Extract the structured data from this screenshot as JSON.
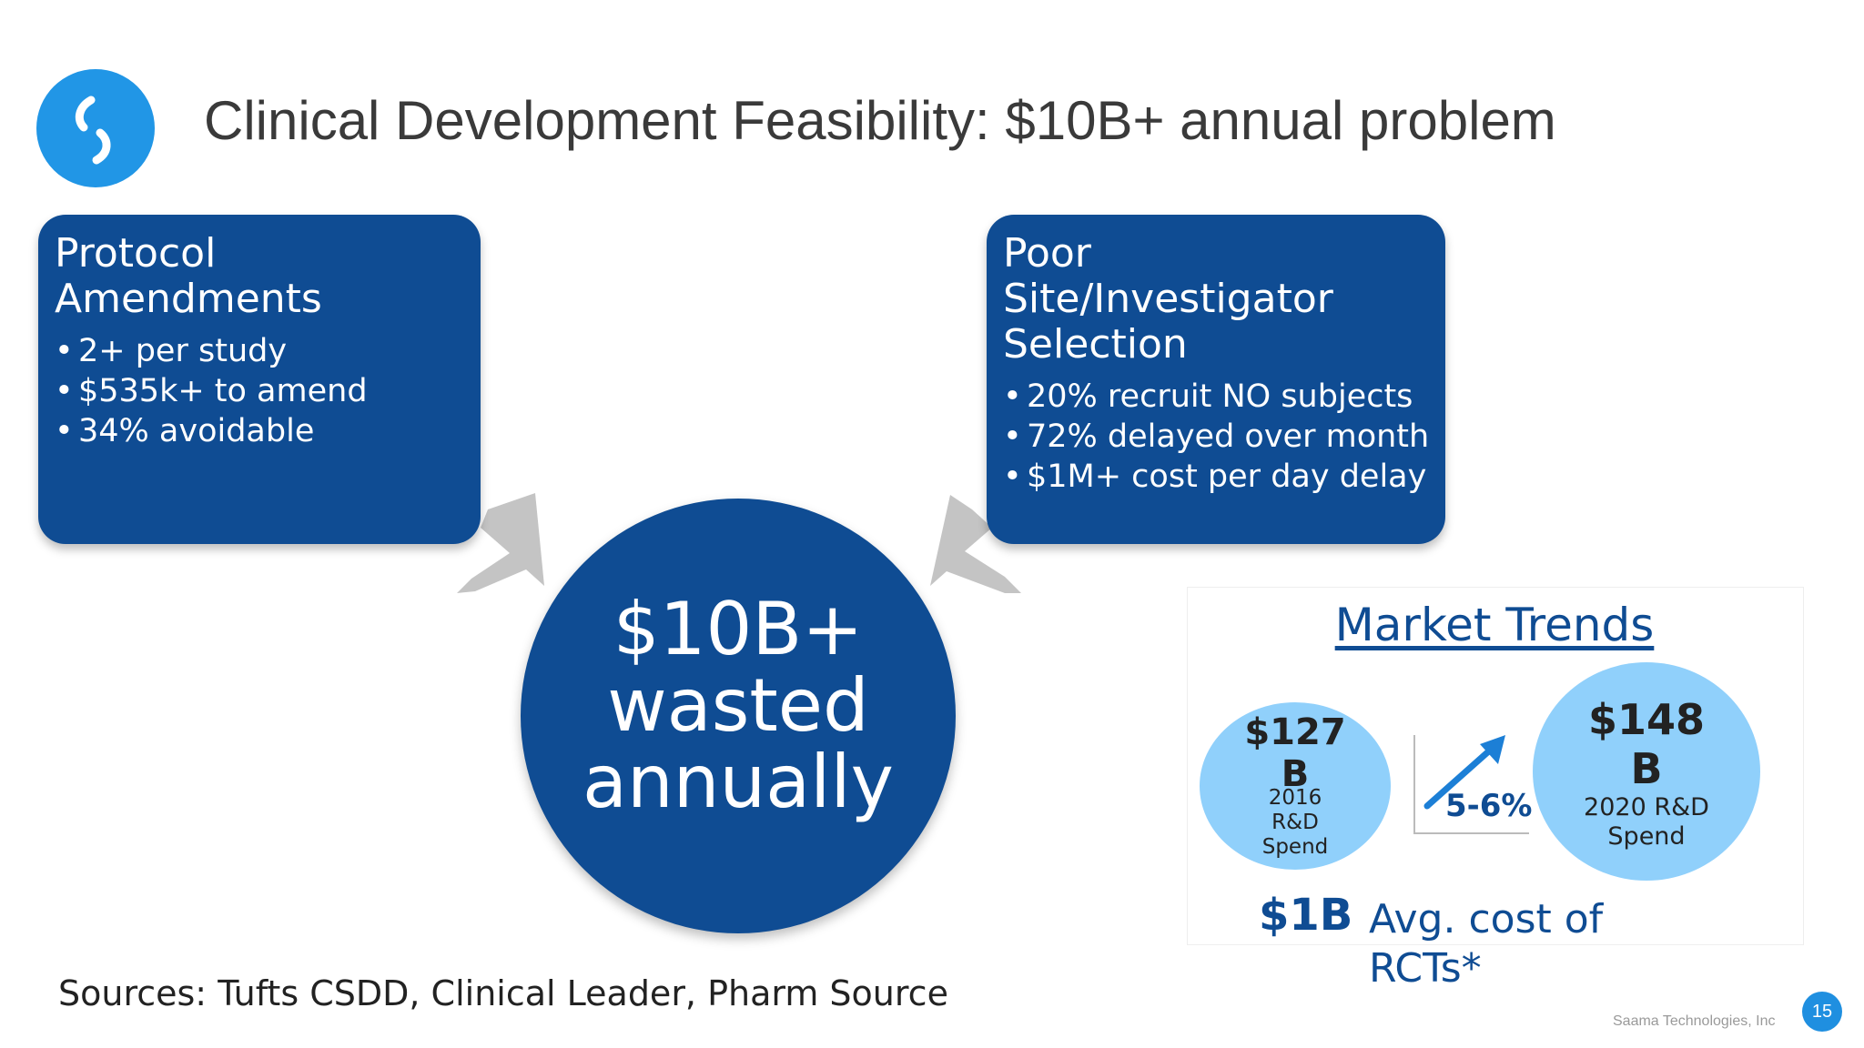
{
  "slide": {
    "title": "Clinical Development Feasibility: $10B+ annual problem",
    "logo_icon": "saama-logo-icon",
    "colors": {
      "navy": "#0f4c93",
      "light_blue": "#90d0fb",
      "logo_blue": "#2196e6",
      "arrow_gray": "#bfbfbf"
    }
  },
  "left_card": {
    "title": "Protocol\nAmendments",
    "bullets": [
      "2+ per study",
      "$535k+ to amend",
      "34% avoidable"
    ]
  },
  "right_card": {
    "title": "Poor\nSite/Investigator\nSelection",
    "bullets": [
      "20% recruit NO subjects",
      "72% delayed over month",
      "$1M+ cost per day delay"
    ]
  },
  "center": {
    "line1": "$10B+",
    "line2": "wasted",
    "line3": "annually"
  },
  "market_trends": {
    "title": "Market Trends",
    "left_bubble": {
      "value_line1": "$127",
      "value_line2": "B",
      "caption_line1": "2016",
      "caption_line2": "R&D",
      "caption_line3": "Spend"
    },
    "right_bubble": {
      "value_line1": "$148",
      "value_line2": "B",
      "caption_line1": "2020 R&D",
      "caption_line2": "Spend"
    },
    "growth": "5-6%",
    "cost_value": "$1B",
    "cost_text": "Avg. cost of RCTs*"
  },
  "footer": {
    "sources": "Sources: Tufts CSDD, Clinical Leader, Pharm Source",
    "company": "Saama Technologies, Inc",
    "page_number": "15"
  }
}
